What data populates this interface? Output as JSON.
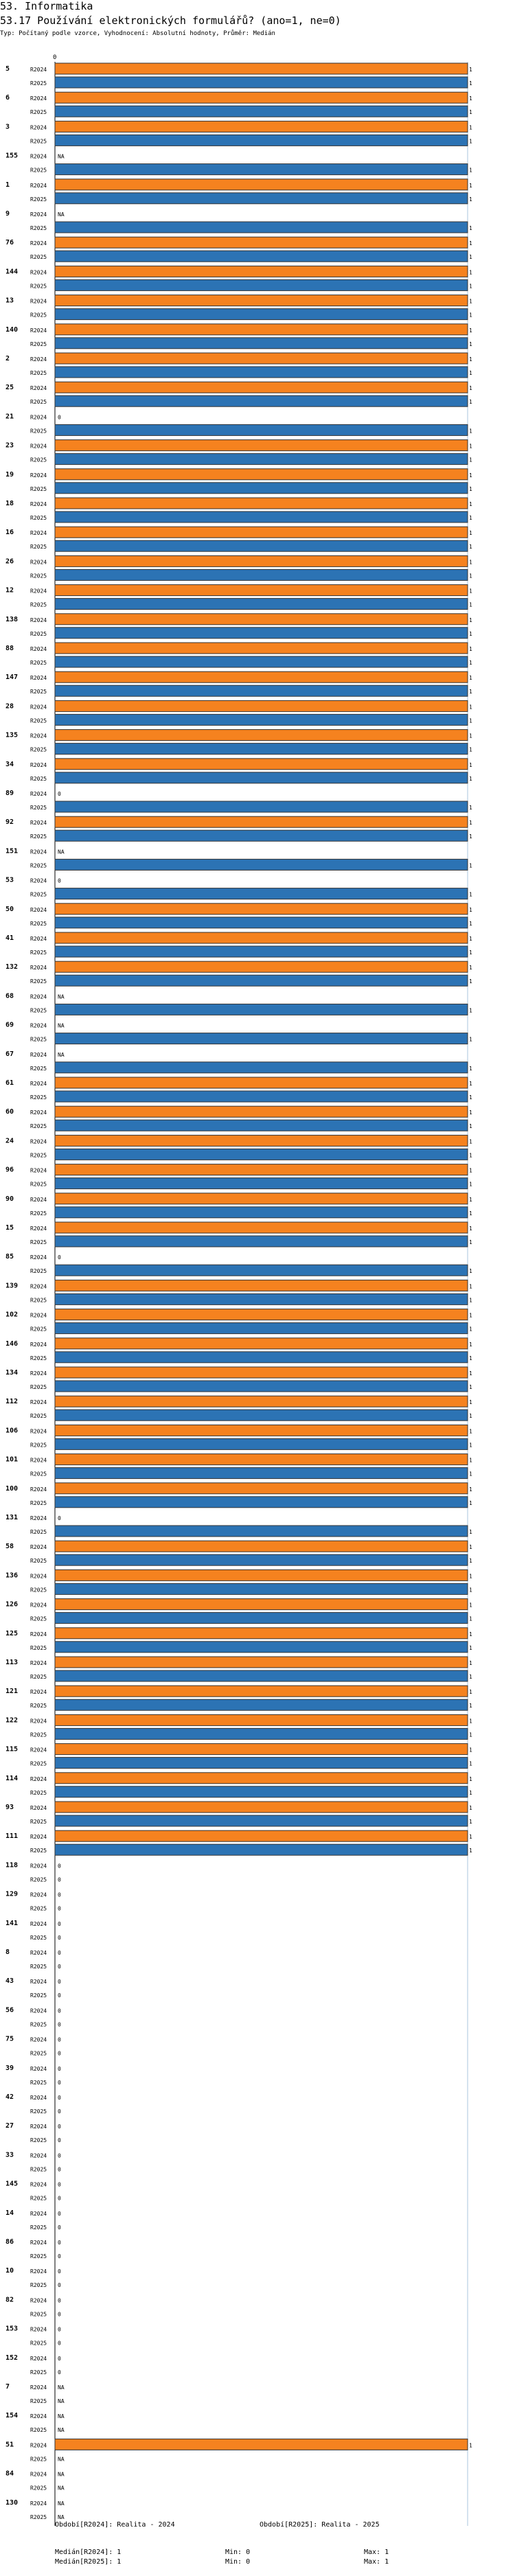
{
  "chart_data": {
    "type": "bar",
    "orientation": "horizontal",
    "title": "53. Informatika",
    "subtitle": "53.17 Používání elektronických formulářů? (ano=1, ne=0)",
    "note": "Typ: Počítaný podle vzorce, Vyhodnocení: Absolutní hodnoty, Průměr: Medián",
    "axis_tick": "0",
    "xlim": [
      0,
      1
    ],
    "series_names": [
      "R2024",
      "R2025"
    ],
    "colors": {
      "R2024": "#f5821f",
      "R2025": "#2c73b4",
      "bar_outline": "#333333",
      "median_line": "#aac4dc"
    },
    "missing_label": "NA",
    "categories": [
      "5",
      "6",
      "3",
      "155",
      "1",
      "9",
      "76",
      "144",
      "13",
      "140",
      "2",
      "25",
      "21",
      "23",
      "19",
      "18",
      "16",
      "26",
      "12",
      "138",
      "88",
      "147",
      "28",
      "135",
      "34",
      "89",
      "92",
      "151",
      "53",
      "50",
      "41",
      "132",
      "68",
      "69",
      "67",
      "61",
      "60",
      "24",
      "96",
      "90",
      "15",
      "85",
      "139",
      "102",
      "146",
      "134",
      "112",
      "106",
      "101",
      "100",
      "131",
      "58",
      "136",
      "126",
      "125",
      "113",
      "121",
      "122",
      "115",
      "114",
      "93",
      "111",
      "118",
      "129",
      "141",
      "8",
      "43",
      "56",
      "75",
      "39",
      "42",
      "27",
      "33",
      "145",
      "14",
      "86",
      "10",
      "82",
      "153",
      "152",
      "7",
      "154",
      "51",
      "84",
      "130"
    ],
    "series": [
      {
        "name": "R2024",
        "values": [
          1,
          1,
          1,
          null,
          1,
          null,
          1,
          1,
          1,
          1,
          1,
          1,
          0,
          1,
          1,
          1,
          1,
          1,
          1,
          1,
          1,
          1,
          1,
          1,
          1,
          0,
          1,
          null,
          0,
          1,
          1,
          1,
          null,
          null,
          null,
          1,
          1,
          1,
          1,
          1,
          1,
          0,
          1,
          1,
          1,
          1,
          1,
          1,
          1,
          1,
          0,
          1,
          1,
          1,
          1,
          1,
          1,
          1,
          1,
          1,
          1,
          1,
          0,
          0,
          0,
          0,
          0,
          0,
          0,
          0,
          0,
          0,
          0,
          0,
          0,
          0,
          0,
          0,
          0,
          0,
          null,
          null,
          1,
          null,
          null
        ]
      },
      {
        "name": "R2025",
        "values": [
          1,
          1,
          1,
          1,
          1,
          1,
          1,
          1,
          1,
          1,
          1,
          1,
          1,
          1,
          1,
          1,
          1,
          1,
          1,
          1,
          1,
          1,
          1,
          1,
          1,
          1,
          1,
          1,
          1,
          1,
          1,
          1,
          1,
          1,
          1,
          1,
          1,
          1,
          1,
          1,
          1,
          1,
          1,
          1,
          1,
          1,
          1,
          1,
          1,
          1,
          1,
          1,
          1,
          1,
          1,
          1,
          1,
          1,
          1,
          1,
          1,
          1,
          0,
          0,
          0,
          0,
          0,
          0,
          0,
          0,
          0,
          0,
          0,
          0,
          0,
          0,
          0,
          0,
          0,
          0,
          null,
          null,
          null,
          null,
          null
        ]
      }
    ],
    "footer": {
      "period_label_1": "Období[R2024]: Realita - 2024",
      "period_label_2": "Období[R2025]: Realita - 2025",
      "stats": [
        {
          "median": "Medián[R2024]: 1",
          "min": "Min: 0",
          "max": "Max: 1"
        },
        {
          "median": "Medián[R2025]: 1",
          "min": "Min: 0",
          "max": "Max: 1"
        }
      ]
    }
  }
}
